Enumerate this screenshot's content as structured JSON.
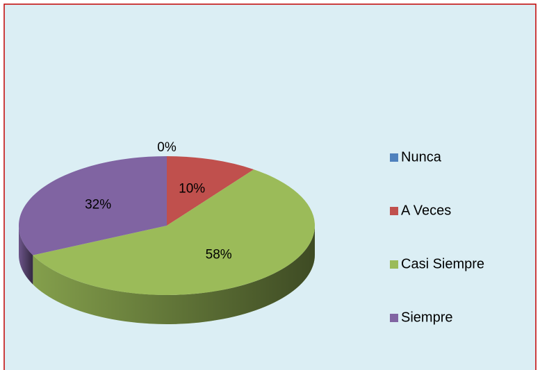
{
  "chart_data": {
    "type": "pie",
    "categories": [
      "Nunca",
      "A Veces",
      "Casi Siempre",
      "Siempre"
    ],
    "values": [
      0,
      10,
      58,
      32
    ],
    "value_labels": [
      "0%",
      "10%",
      "58%",
      "32%"
    ],
    "colors": [
      "#4f81bd",
      "#c0504d",
      "#9bbb59",
      "#8064a2"
    ],
    "legend": "right"
  }
}
